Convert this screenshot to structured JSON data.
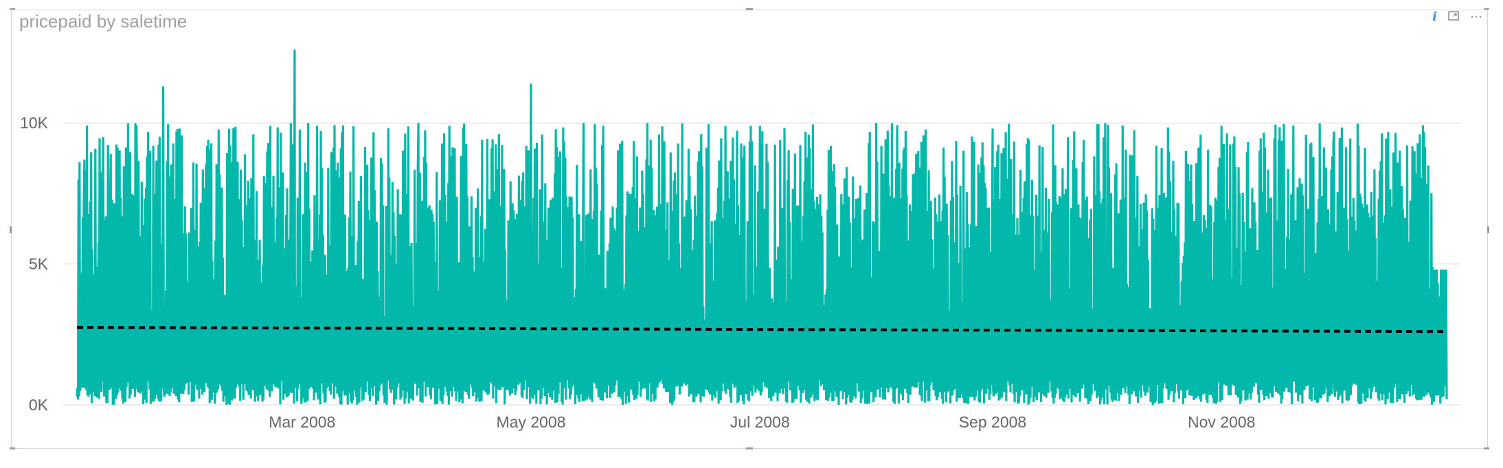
{
  "visual": {
    "title": "pricepaid by saletime",
    "more_options_label": "⋯"
  },
  "icons": {
    "info": "info-icon",
    "focus": "focus-mode-icon",
    "more": "more-options-icon"
  },
  "colors": {
    "series": "#01B8AA",
    "trend": "#000000",
    "grid": "#e6e6e6",
    "axis_text": "#666666",
    "title": "#a0a0a0"
  },
  "chart_data": {
    "type": "line",
    "title": "pricepaid by saletime",
    "xlabel": "",
    "ylabel": "",
    "x_range": [
      "2008-01-01",
      "2008-12-31"
    ],
    "ylim": [
      0,
      13000
    ],
    "grid": "horizontal",
    "legend": "none",
    "x_ticks": [
      {
        "date": "2008-03-01",
        "label": "Mar 2008"
      },
      {
        "date": "2008-05-01",
        "label": "May 2008"
      },
      {
        "date": "2008-07-01",
        "label": "Jul 2008"
      },
      {
        "date": "2008-09-01",
        "label": "Sep 2008"
      },
      {
        "date": "2008-11-01",
        "label": "Nov 2008"
      }
    ],
    "y_ticks": [
      {
        "value": 0,
        "label": "0K"
      },
      {
        "value": 5000,
        "label": "5K"
      },
      {
        "value": 10000,
        "label": "10K"
      }
    ],
    "series": [
      {
        "values_description": "daily pricepaid, dense high-frequency line mostly between 0 and 10K",
        "peaks": [
          {
            "x": "2008-01-01",
            "y": 300
          },
          {
            "x": "2008-01-02",
            "y": 4200
          },
          {
            "x": "2008-01-03",
            "y": 8700
          },
          {
            "x": "2008-01-08",
            "y": 9500
          },
          {
            "x": "2008-01-10",
            "y": 8900
          },
          {
            "x": "2008-01-13",
            "y": 6700
          },
          {
            "x": "2008-01-17",
            "y": 7800
          },
          {
            "x": "2008-01-24",
            "y": 11300
          },
          {
            "x": "2008-02-05",
            "y": 9400
          },
          {
            "x": "2008-02-17",
            "y": 9600
          },
          {
            "x": "2008-02-27",
            "y": 10000
          },
          {
            "x": "2008-02-28",
            "y": 12600
          },
          {
            "x": "2008-03-01",
            "y": 400
          },
          {
            "x": "2008-03-05",
            "y": 9900
          },
          {
            "x": "2008-04-01",
            "y": 10000
          },
          {
            "x": "2008-05-01",
            "y": 11400
          },
          {
            "x": "2008-05-15",
            "y": 10000
          },
          {
            "x": "2008-06-01",
            "y": 10000
          },
          {
            "x": "2008-07-01",
            "y": 9900
          },
          {
            "x": "2008-08-01",
            "y": 10000
          },
          {
            "x": "2008-09-01",
            "y": 9800
          },
          {
            "x": "2008-10-01",
            "y": 10000
          },
          {
            "x": "2008-11-01",
            "y": 9900
          },
          {
            "x": "2008-12-01",
            "y": 9700
          },
          {
            "x": "2008-12-15",
            "y": 8700
          },
          {
            "x": "2008-12-20",
            "y": 4000
          },
          {
            "x": "2008-12-31",
            "y": 200
          }
        ]
      }
    ],
    "trend_line": {
      "start": {
        "x": "2008-01-01",
        "y": 2750
      },
      "end": {
        "x": "2008-12-31",
        "y": 2600
      }
    }
  }
}
